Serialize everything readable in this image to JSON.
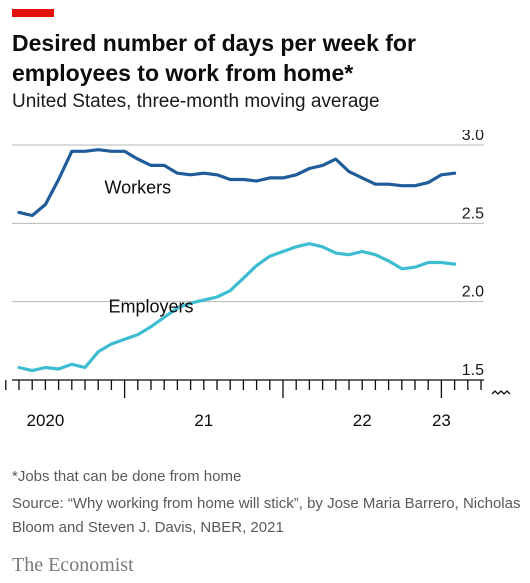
{
  "header": {
    "title": "Desired number of days per week for employees to work from home*",
    "subtitle": "United States, three-month moving average"
  },
  "footer": {
    "footnote": "*Jobs that can be done from home",
    "source": "Source: “Why working from home will stick”, by Jose Maria Barrero, Nicholas Bloom and Steven J. Davis, NBER, 2021",
    "brand": "The Economist"
  },
  "colors": {
    "accent": "#e3120b",
    "workers": "#1f5c99",
    "employers": "#3ebcd2",
    "grid": "#b7b7b7",
    "axis": "#0c0c0c"
  },
  "chart_data": {
    "type": "line",
    "title": "Desired number of days per week for employees to work from home*",
    "subtitle": "United States, three-month moving average",
    "y_axis_position": "right",
    "ylim": [
      1.5,
      3.0
    ],
    "yticks": [
      1.5,
      2.0,
      2.5,
      3.0
    ],
    "ytick_labels": [
      "1.5",
      "2.0",
      "2.5",
      "3.0"
    ],
    "y_axis_break": true,
    "x_start": "2020-05",
    "x_end": "2023-03",
    "x_ticks_monthly": true,
    "x_tick_labels": [
      {
        "label": "2020",
        "month": "2020-07"
      },
      {
        "label": "21",
        "month": "2021-07"
      },
      {
        "label": "22",
        "month": "2022-07"
      },
      {
        "label": "23",
        "month": "2023-01"
      }
    ],
    "grid": true,
    "legend": "inline labels",
    "series": [
      {
        "name": "Workers",
        "color": "#1f5c99",
        "points": [
          [
            "2020-05",
            2.57
          ],
          [
            "2020-06",
            2.55
          ],
          [
            "2020-07",
            2.62
          ],
          [
            "2020-08",
            2.78
          ],
          [
            "2020-09",
            2.96
          ],
          [
            "2020-10",
            2.96
          ],
          [
            "2020-11",
            2.97
          ],
          [
            "2020-12",
            2.96
          ],
          [
            "2021-01",
            2.96
          ],
          [
            "2021-02",
            2.91
          ],
          [
            "2021-03",
            2.87
          ],
          [
            "2021-04",
            2.87
          ],
          [
            "2021-05",
            2.82
          ],
          [
            "2021-06",
            2.81
          ],
          [
            "2021-07",
            2.82
          ],
          [
            "2021-08",
            2.81
          ],
          [
            "2021-09",
            2.78
          ],
          [
            "2021-10",
            2.78
          ],
          [
            "2021-11",
            2.77
          ],
          [
            "2021-12",
            2.79
          ],
          [
            "2022-01",
            2.79
          ],
          [
            "2022-02",
            2.81
          ],
          [
            "2022-03",
            2.85
          ],
          [
            "2022-04",
            2.87
          ],
          [
            "2022-05",
            2.91
          ],
          [
            "2022-06",
            2.83
          ],
          [
            "2022-07",
            2.79
          ],
          [
            "2022-08",
            2.75
          ],
          [
            "2022-09",
            2.75
          ],
          [
            "2022-10",
            2.74
          ],
          [
            "2022-11",
            2.74
          ],
          [
            "2022-12",
            2.76
          ],
          [
            "2023-01",
            2.81
          ],
          [
            "2023-02",
            2.82
          ]
        ]
      },
      {
        "name": "Employers",
        "color": "#3ebcd2",
        "points": [
          [
            "2020-05",
            1.58
          ],
          [
            "2020-06",
            1.56
          ],
          [
            "2020-07",
            1.58
          ],
          [
            "2020-08",
            1.57
          ],
          [
            "2020-09",
            1.6
          ],
          [
            "2020-10",
            1.58
          ],
          [
            "2020-11",
            1.68
          ],
          [
            "2020-12",
            1.73
          ],
          [
            "2021-01",
            1.76
          ],
          [
            "2021-02",
            1.79
          ],
          [
            "2021-03",
            1.84
          ],
          [
            "2021-04",
            1.9
          ],
          [
            "2021-05",
            1.96
          ],
          [
            "2021-06",
            1.99
          ],
          [
            "2021-07",
            2.01
          ],
          [
            "2021-08",
            2.03
          ],
          [
            "2021-09",
            2.07
          ],
          [
            "2021-10",
            2.15
          ],
          [
            "2021-11",
            2.23
          ],
          [
            "2021-12",
            2.29
          ],
          [
            "2022-01",
            2.32
          ],
          [
            "2022-02",
            2.35
          ],
          [
            "2022-03",
            2.37
          ],
          [
            "2022-04",
            2.35
          ],
          [
            "2022-05",
            2.31
          ],
          [
            "2022-06",
            2.3
          ],
          [
            "2022-07",
            2.32
          ],
          [
            "2022-08",
            2.3
          ],
          [
            "2022-09",
            2.26
          ],
          [
            "2022-10",
            2.21
          ],
          [
            "2022-11",
            2.22
          ],
          [
            "2022-12",
            2.25
          ],
          [
            "2023-01",
            2.25
          ],
          [
            "2023-02",
            2.24
          ]
        ]
      }
    ]
  }
}
